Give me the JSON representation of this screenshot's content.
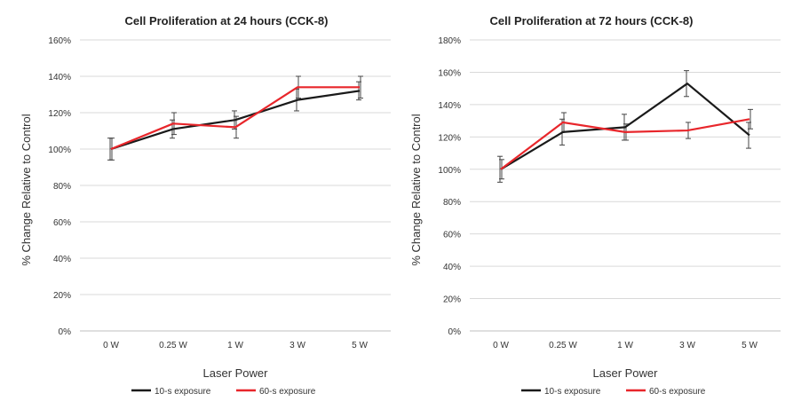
{
  "colors": {
    "series1": "#1a1a1a",
    "series2": "#e8262b"
  },
  "chart_data": [
    {
      "type": "line",
      "title": "Cell Proliferation at 24 hours (CCK-8)",
      "xlabel": "Laser Power",
      "ylabel": "% Change Relative to Control",
      "categories": [
        "0 W",
        "0.25 W",
        "1 W",
        "3 W",
        "5 W"
      ],
      "ylim": [
        0,
        160
      ],
      "yticks": [
        0,
        20,
        40,
        60,
        80,
        100,
        120,
        140,
        160
      ],
      "ytick_labels": [
        "0%",
        "20%",
        "40%",
        "60%",
        "80%",
        "100%",
        "120%",
        "140%",
        "160%"
      ],
      "grid": true,
      "legend": "bottom",
      "series": [
        {
          "name": "10-s exposure",
          "color": "#1a1a1a",
          "values": [
            100,
            111,
            116,
            127,
            132
          ],
          "errors": [
            6,
            5,
            5,
            6,
            5
          ]
        },
        {
          "name": "60-s exposure",
          "color": "#e8262b",
          "values": [
            100,
            114,
            112,
            134,
            134
          ],
          "errors": [
            6,
            6,
            6,
            6,
            6
          ]
        }
      ]
    },
    {
      "type": "line",
      "title": "Cell Proliferation at 72 hours (CCK-8)",
      "xlabel": "Laser Power",
      "ylabel": "% Change Relative to Control",
      "categories": [
        "0 W",
        "0.25 W",
        "1 W",
        "3 W",
        "5 W"
      ],
      "ylim": [
        0,
        180
      ],
      "yticks": [
        0,
        20,
        40,
        60,
        80,
        100,
        120,
        140,
        160,
        180
      ],
      "ytick_labels": [
        "0%",
        "20%",
        "40%",
        "60%",
        "80%",
        "100%",
        "120%",
        "140%",
        "160%",
        "180%"
      ],
      "grid": true,
      "legend": "bottom",
      "series": [
        {
          "name": "10-s exposure",
          "color": "#1a1a1a",
          "values": [
            100,
            123,
            126,
            153,
            121
          ],
          "errors": [
            8,
            8,
            8,
            8,
            8
          ]
        },
        {
          "name": "60-s exposure",
          "color": "#e8262b",
          "values": [
            100,
            129,
            123,
            124,
            131
          ],
          "errors": [
            6,
            6,
            5,
            5,
            6
          ]
        }
      ]
    }
  ]
}
